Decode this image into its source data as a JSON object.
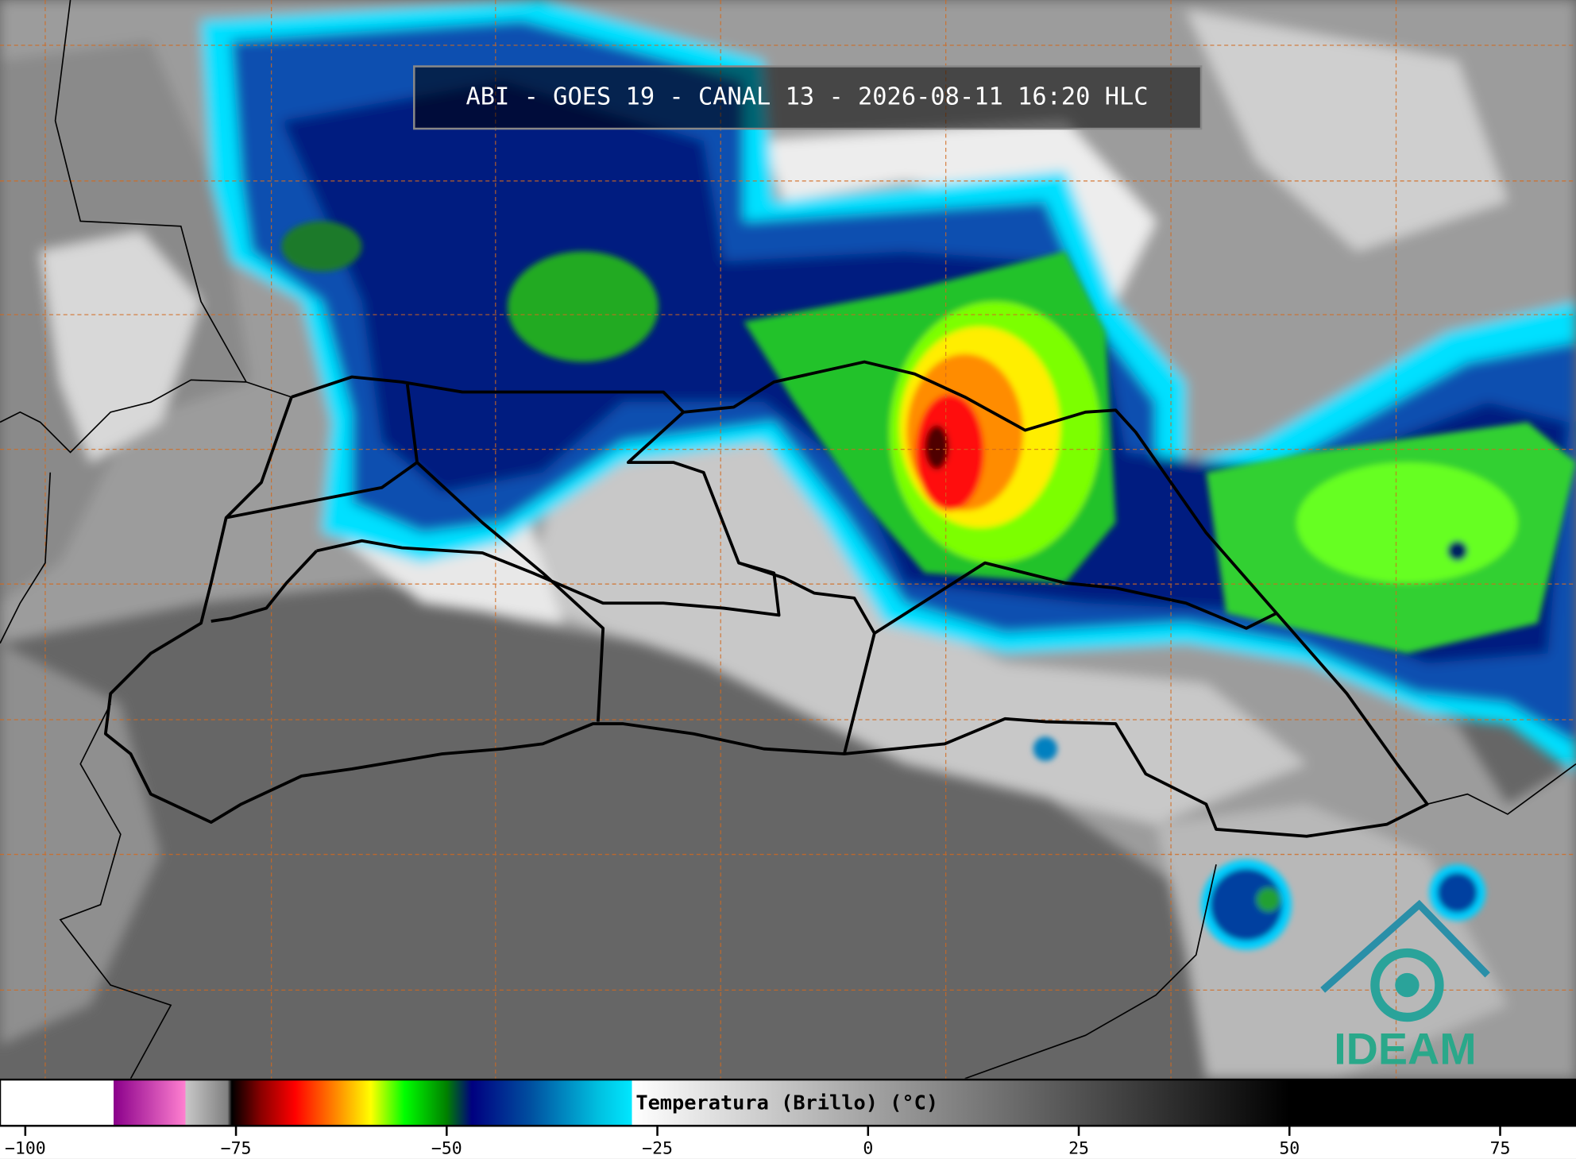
{
  "title": "ABI - GOES 19 - CANAL 13 - 2026-08-11 16:20 HLC",
  "colorbar": {
    "label": "Temperatura (Brillo) (°C)",
    "range": [
      -103,
      84
    ],
    "ticks": [
      {
        "value": -100,
        "label": "−100"
      },
      {
        "value": -75,
        "label": "−75"
      },
      {
        "value": -50,
        "label": "−50"
      },
      {
        "value": -25,
        "label": "−25"
      },
      0,
      25,
      50,
      75
    ],
    "stops": [
      {
        "value": -103,
        "color": "#ffffff"
      },
      {
        "value": -89.5,
        "color": "#ffffff"
      },
      {
        "value": -89.5,
        "color": "#8b008b"
      },
      {
        "value": -81,
        "color": "#ff80d0"
      },
      {
        "value": -81,
        "color": "#c8c8c8"
      },
      {
        "value": -76,
        "color": "#808080"
      },
      {
        "value": -75.5,
        "color": "#000000"
      },
      {
        "value": -72,
        "color": "#8b0000"
      },
      {
        "value": -68,
        "color": "#ff0000"
      },
      {
        "value": -63,
        "color": "#ff8c00"
      },
      {
        "value": -59,
        "color": "#ffff00"
      },
      {
        "value": -55,
        "color": "#00ff00"
      },
      {
        "value": -50,
        "color": "#008000"
      },
      {
        "value": -47,
        "color": "#000080"
      },
      {
        "value": -40,
        "color": "#0050a0"
      },
      {
        "value": -32,
        "color": "#00c0e0"
      },
      {
        "value": -28,
        "color": "#00e8ff"
      },
      {
        "value": -28,
        "color": "#ffffff"
      },
      {
        "value": 50,
        "color": "#000000"
      },
      {
        "value": 84,
        "color": "#000000"
      }
    ]
  },
  "logo": {
    "text": "IDEAM"
  }
}
